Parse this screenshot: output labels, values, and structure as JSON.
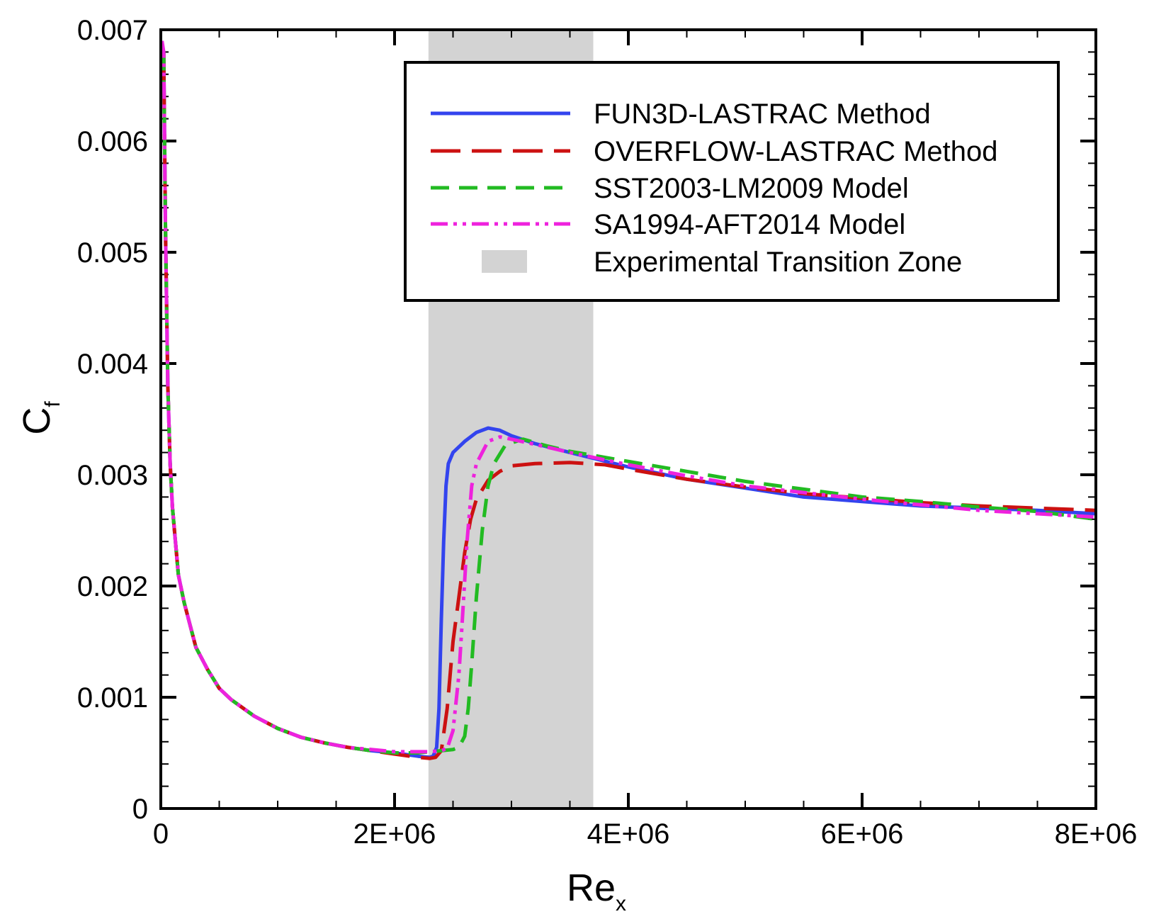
{
  "chart_data": {
    "type": "line",
    "title": "",
    "xlabel": {
      "main": "Re",
      "sub": "x"
    },
    "ylabel": {
      "main": "C",
      "sub": "f"
    },
    "xlim": [
      0,
      8000000
    ],
    "ylim": [
      0,
      0.007
    ],
    "x_ticks": [
      {
        "value": 0,
        "label": "0"
      },
      {
        "value": 2000000,
        "label": "2E+06"
      },
      {
        "value": 4000000,
        "label": "4E+06"
      },
      {
        "value": 6000000,
        "label": "6E+06"
      },
      {
        "value": 8000000,
        "label": "8E+06"
      }
    ],
    "y_ticks": [
      {
        "value": 0,
        "label": "0"
      },
      {
        "value": 0.001,
        "label": "0.001"
      },
      {
        "value": 0.002,
        "label": "0.002"
      },
      {
        "value": 0.003,
        "label": "0.003"
      },
      {
        "value": 0.004,
        "label": "0.004"
      },
      {
        "value": 0.005,
        "label": "0.005"
      },
      {
        "value": 0.006,
        "label": "0.006"
      },
      {
        "value": 0.007,
        "label": "0.007"
      }
    ],
    "x_minor_step": 500000,
    "y_minor_step": 0.0002,
    "grid": false,
    "legend_position": "top-right",
    "transition_zone": {
      "name": "Experimental Transition Zone",
      "x_start": 2290000,
      "x_end": 3700000,
      "color": "#d3d3d3"
    },
    "series": [
      {
        "name": "FUN3D-LASTRAC Method",
        "color": "#3344ee",
        "dash": "solid",
        "points": [
          [
            25000,
            0.0068
          ],
          [
            40000,
            0.0052
          ],
          [
            60000,
            0.0038
          ],
          [
            80000,
            0.0031
          ],
          [
            100000,
            0.0027
          ],
          [
            150000,
            0.0021
          ],
          [
            200000,
            0.00185
          ],
          [
            300000,
            0.00145
          ],
          [
            400000,
            0.00125
          ],
          [
            500000,
            0.00108
          ],
          [
            600000,
            0.00098
          ],
          [
            800000,
            0.00083
          ],
          [
            1000000,
            0.00072
          ],
          [
            1200000,
            0.00064
          ],
          [
            1400000,
            0.00059
          ],
          [
            1600000,
            0.00055
          ],
          [
            1800000,
            0.00052
          ],
          [
            2000000,
            0.0005
          ],
          [
            2200000,
            0.00047
          ],
          [
            2300000,
            0.00046
          ],
          [
            2330000,
            0.00047
          ],
          [
            2360000,
            0.00055
          ],
          [
            2380000,
            0.0009
          ],
          [
            2400000,
            0.0017
          ],
          [
            2420000,
            0.0024
          ],
          [
            2440000,
            0.0029
          ],
          [
            2460000,
            0.0031
          ],
          [
            2500000,
            0.0032
          ],
          [
            2600000,
            0.0033
          ],
          [
            2700000,
            0.00338
          ],
          [
            2800000,
            0.00342
          ],
          [
            2900000,
            0.0034
          ],
          [
            3000000,
            0.00335
          ],
          [
            3200000,
            0.00328
          ],
          [
            3500000,
            0.0032
          ],
          [
            4000000,
            0.00307
          ],
          [
            4500000,
            0.00296
          ],
          [
            5000000,
            0.00288
          ],
          [
            5500000,
            0.0028
          ],
          [
            6000000,
            0.00276
          ],
          [
            6500000,
            0.00272
          ],
          [
            7000000,
            0.0027
          ],
          [
            7500000,
            0.00268
          ],
          [
            8000000,
            0.00265
          ]
        ]
      },
      {
        "name": "OVERFLOW-LASTRAC Method",
        "color": "#cc1111",
        "dash": "long-dash",
        "points": [
          [
            25000,
            0.0068
          ],
          [
            40000,
            0.0052
          ],
          [
            60000,
            0.0038
          ],
          [
            80000,
            0.0031
          ],
          [
            100000,
            0.0027
          ],
          [
            150000,
            0.0021
          ],
          [
            200000,
            0.00185
          ],
          [
            300000,
            0.00145
          ],
          [
            400000,
            0.00125
          ],
          [
            500000,
            0.00108
          ],
          [
            600000,
            0.00098
          ],
          [
            800000,
            0.00083
          ],
          [
            1000000,
            0.00072
          ],
          [
            1200000,
            0.00064
          ],
          [
            1400000,
            0.00059
          ],
          [
            1600000,
            0.00055
          ],
          [
            1800000,
            0.00052
          ],
          [
            2000000,
            0.00049
          ],
          [
            2200000,
            0.00046
          ],
          [
            2300000,
            0.00045
          ],
          [
            2350000,
            0.00046
          ],
          [
            2400000,
            0.00052
          ],
          [
            2450000,
            0.0009
          ],
          [
            2500000,
            0.0015
          ],
          [
            2550000,
            0.0019
          ],
          [
            2600000,
            0.0023
          ],
          [
            2650000,
            0.0026
          ],
          [
            2700000,
            0.00278
          ],
          [
            2800000,
            0.00295
          ],
          [
            2900000,
            0.00303
          ],
          [
            3000000,
            0.00308
          ],
          [
            3200000,
            0.0031
          ],
          [
            3500000,
            0.00311
          ],
          [
            3800000,
            0.00309
          ],
          [
            4000000,
            0.00305
          ],
          [
            4500000,
            0.00296
          ],
          [
            5000000,
            0.00289
          ],
          [
            5500000,
            0.00283
          ],
          [
            6000000,
            0.00279
          ],
          [
            6500000,
            0.00275
          ],
          [
            7000000,
            0.00272
          ],
          [
            7500000,
            0.0027
          ],
          [
            8000000,
            0.00268
          ]
        ]
      },
      {
        "name": "SST2003-LM2009 Model",
        "color": "#22bb22",
        "dash": "medium-dash",
        "points": [
          [
            25000,
            0.0068
          ],
          [
            40000,
            0.0052
          ],
          [
            60000,
            0.0038
          ],
          [
            80000,
            0.0031
          ],
          [
            100000,
            0.0027
          ],
          [
            150000,
            0.0021
          ],
          [
            200000,
            0.00185
          ],
          [
            300000,
            0.00145
          ],
          [
            400000,
            0.00125
          ],
          [
            500000,
            0.00108
          ],
          [
            600000,
            0.00098
          ],
          [
            800000,
            0.00083
          ],
          [
            1000000,
            0.00072
          ],
          [
            1200000,
            0.00064
          ],
          [
            1400000,
            0.00059
          ],
          [
            1600000,
            0.00055
          ],
          [
            1800000,
            0.00052
          ],
          [
            2000000,
            0.0005
          ],
          [
            2200000,
            0.0005
          ],
          [
            2300000,
            0.00051
          ],
          [
            2400000,
            0.00052
          ],
          [
            2500000,
            0.00053
          ],
          [
            2550000,
            0.00055
          ],
          [
            2600000,
            0.00065
          ],
          [
            2630000,
            0.0009
          ],
          [
            2660000,
            0.0013
          ],
          [
            2700000,
            0.0019
          ],
          [
            2750000,
            0.0025
          ],
          [
            2800000,
            0.0029
          ],
          [
            2850000,
            0.0031
          ],
          [
            2950000,
            0.00327
          ],
          [
            3100000,
            0.00332
          ],
          [
            3300000,
            0.00326
          ],
          [
            3500000,
            0.00321
          ],
          [
            4000000,
            0.00312
          ],
          [
            4500000,
            0.00303
          ],
          [
            5000000,
            0.00294
          ],
          [
            5500000,
            0.00287
          ],
          [
            6000000,
            0.0028
          ],
          [
            6500000,
            0.00276
          ],
          [
            7000000,
            0.00271
          ],
          [
            7500000,
            0.00267
          ],
          [
            8000000,
            0.0026
          ]
        ]
      },
      {
        "name": "SA1994-AFT2014 Model",
        "color": "#ee22dd",
        "dash": "dash-dot-dot",
        "points": [
          [
            10000,
            0.0069
          ],
          [
            25000,
            0.0068
          ],
          [
            40000,
            0.0052
          ],
          [
            60000,
            0.0038
          ],
          [
            80000,
            0.0031
          ],
          [
            100000,
            0.0027
          ],
          [
            150000,
            0.0021
          ],
          [
            200000,
            0.00185
          ],
          [
            300000,
            0.00145
          ],
          [
            400000,
            0.00125
          ],
          [
            500000,
            0.00108
          ],
          [
            600000,
            0.00098
          ],
          [
            800000,
            0.00083
          ],
          [
            1000000,
            0.00072
          ],
          [
            1200000,
            0.00064
          ],
          [
            1400000,
            0.00059
          ],
          [
            1600000,
            0.00055
          ],
          [
            1800000,
            0.00053
          ],
          [
            2000000,
            0.00051
          ],
          [
            2200000,
            0.00051
          ],
          [
            2300000,
            0.00051
          ],
          [
            2400000,
            0.00052
          ],
          [
            2450000,
            0.00054
          ],
          [
            2500000,
            0.0007
          ],
          [
            2550000,
            0.0012
          ],
          [
            2580000,
            0.0017
          ],
          [
            2620000,
            0.0024
          ],
          [
            2660000,
            0.0029
          ],
          [
            2700000,
            0.0031
          ],
          [
            2800000,
            0.0033
          ],
          [
            2900000,
            0.00334
          ],
          [
            3000000,
            0.00332
          ],
          [
            3300000,
            0.00325
          ],
          [
            3500000,
            0.0032
          ],
          [
            4000000,
            0.00309
          ],
          [
            4500000,
            0.00299
          ],
          [
            5000000,
            0.0029
          ],
          [
            5500000,
            0.00284
          ],
          [
            6000000,
            0.00278
          ],
          [
            6500000,
            0.00273
          ],
          [
            7000000,
            0.00268
          ],
          [
            7500000,
            0.00265
          ],
          [
            8000000,
            0.00262
          ]
        ]
      }
    ]
  }
}
